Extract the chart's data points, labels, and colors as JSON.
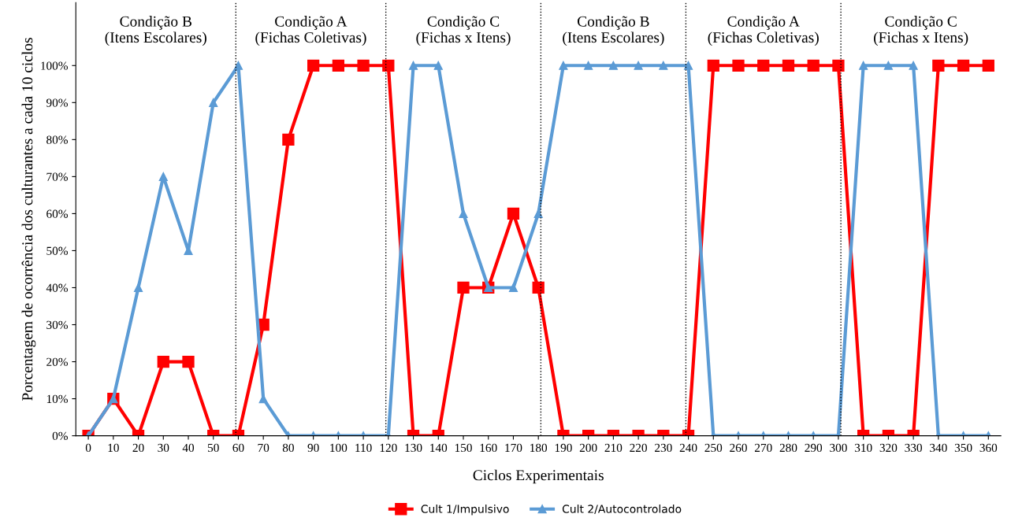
{
  "chart_data": {
    "type": "line",
    "xlabel": "Ciclos Experimentais",
    "ylabel": "Porcentagem de ocorrência dos culturantes a cada 10 ciclos",
    "x": [
      0,
      10,
      20,
      30,
      40,
      50,
      60,
      70,
      80,
      90,
      100,
      110,
      120,
      130,
      140,
      150,
      160,
      170,
      180,
      190,
      200,
      210,
      220,
      230,
      240,
      250,
      260,
      270,
      280,
      290,
      300,
      310,
      320,
      330,
      340,
      350,
      360
    ],
    "series": [
      {
        "name": "Cult 1/Impulsivo",
        "color": "#ff0000",
        "marker": "square",
        "values": [
          0,
          10,
          0,
          20,
          20,
          0,
          0,
          30,
          80,
          100,
          100,
          100,
          100,
          0,
          0,
          40,
          40,
          60,
          40,
          0,
          0,
          0,
          0,
          0,
          0,
          100,
          100,
          100,
          100,
          100,
          100,
          0,
          0,
          0,
          100,
          100,
          100
        ]
      },
      {
        "name": "Cult 2/Autocontrolado",
        "color": "#5b9bd5",
        "marker": "triangle",
        "values": [
          0,
          10,
          40,
          70,
          50,
          90,
          100,
          10,
          0,
          0,
          0,
          0,
          0,
          100,
          100,
          60,
          40,
          40,
          60,
          100,
          100,
          100,
          100,
          100,
          100,
          0,
          0,
          0,
          0,
          0,
          0,
          100,
          100,
          100,
          0,
          0,
          0
        ]
      }
    ],
    "xlim": [
      -5,
      365
    ],
    "xticks": [
      0,
      10,
      20,
      30,
      40,
      50,
      60,
      70,
      80,
      90,
      100,
      110,
      120,
      130,
      140,
      150,
      160,
      170,
      180,
      190,
      200,
      210,
      220,
      230,
      240,
      250,
      260,
      270,
      280,
      290,
      300,
      310,
      320,
      330,
      340,
      350,
      360
    ],
    "ylim": [
      0,
      117
    ],
    "yticks": [
      {
        "value": 0,
        "label": "0%"
      },
      {
        "value": 10,
        "label": "10%"
      },
      {
        "value": 20,
        "label": "20%"
      },
      {
        "value": 30,
        "label": "30%"
      },
      {
        "value": 40,
        "label": "40%"
      },
      {
        "value": 50,
        "label": "50%"
      },
      {
        "value": 60,
        "label": "60%"
      },
      {
        "value": 70,
        "label": "70%"
      },
      {
        "value": 80,
        "label": "80%"
      },
      {
        "value": 90,
        "label": "90%"
      },
      {
        "value": 100,
        "label": "100%"
      }
    ],
    "ref_lines": [
      {
        "axis": "x",
        "value": 59,
        "color": "#000000",
        "line_style": "dotted"
      },
      {
        "axis": "x",
        "value": 119,
        "color": "#000000",
        "line_style": "dotted"
      },
      {
        "axis": "x",
        "value": 181,
        "color": "#000000",
        "line_style": "dotted"
      },
      {
        "axis": "x",
        "value": 239,
        "color": "#000000",
        "line_style": "dotted"
      },
      {
        "axis": "x",
        "value": 301,
        "color": "#000000",
        "line_style": "dotted"
      }
    ],
    "annotations": [
      "Condição B\n(Itens Escolares)",
      "Condição A\n(Fichas Coletivas)",
      "Condição C\n(Fichas x Itens)",
      "Condição B\n(Itens Escolares)",
      "Condição A\n(Fichas Coletivas)",
      "Condição C\n(Fichas x Itens)"
    ],
    "grid": false,
    "legend": "bottom",
    "line_style": "solid"
  }
}
